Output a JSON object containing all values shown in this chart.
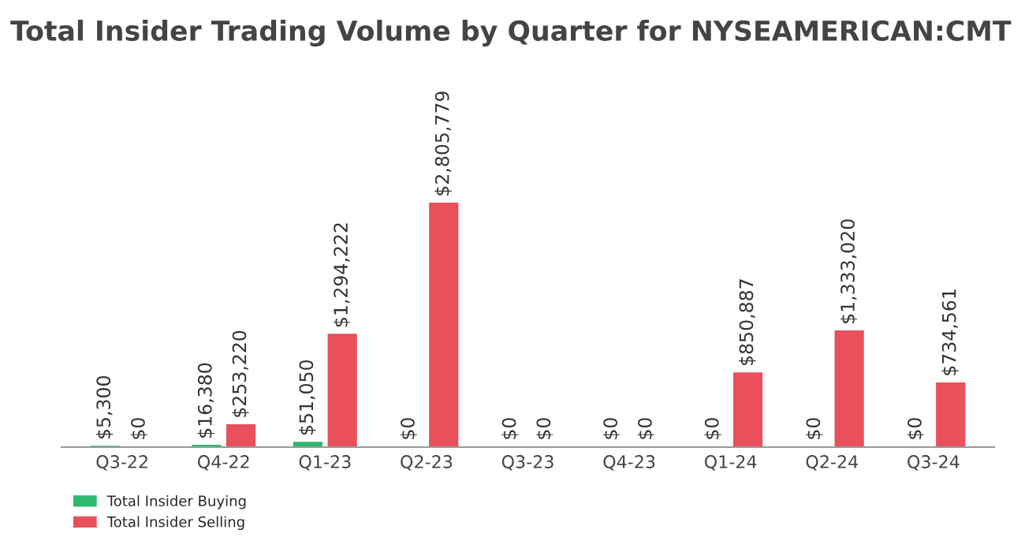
{
  "chart_data": {
    "type": "bar",
    "title": "Total Insider Trading Volume by Quarter for NYSEAMERICAN:CMT",
    "categories": [
      "Q3-22",
      "Q4-22",
      "Q1-23",
      "Q2-23",
      "Q3-23",
      "Q4-23",
      "Q1-24",
      "Q2-24",
      "Q3-24"
    ],
    "series": [
      {
        "name": "Total Insider Buying",
        "color": "#2eb872",
        "values": [
          5300,
          16380,
          51050,
          0,
          0,
          0,
          0,
          0,
          0
        ],
        "value_labels": [
          "$5,300",
          "$16,380",
          "$51,050",
          "$0",
          "$0",
          "$0",
          "$0",
          "$0",
          "$0"
        ]
      },
      {
        "name": "Total Insider Selling",
        "color": "#e8505b",
        "values": [
          0,
          253220,
          1294222,
          2805779,
          0,
          0,
          850887,
          1333020,
          734561
        ],
        "value_labels": [
          "$0",
          "$253,220",
          "$1,294,222",
          "$2,805,779",
          "$0",
          "$0",
          "$850,887",
          "$1,333,020",
          "$734,561"
        ]
      }
    ],
    "legend": "bottom left",
    "grid": false
  }
}
